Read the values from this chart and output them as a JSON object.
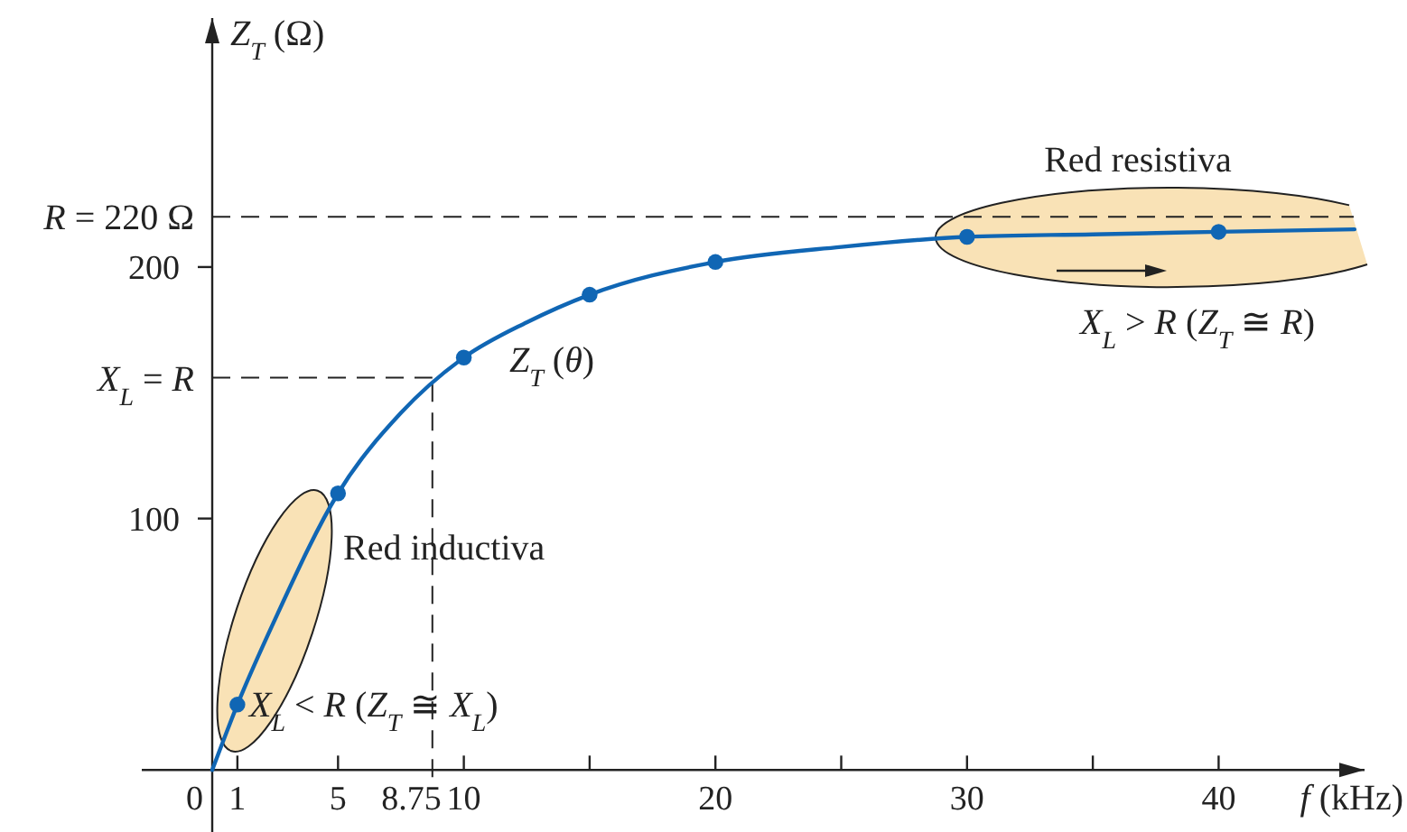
{
  "chart_data": {
    "type": "line",
    "xlabel": "f (kHz)",
    "ylabel": "Z$_{T}$ (Ω)",
    "xlim": [
      -2.8,
      45.8
    ],
    "ylim": [
      -25,
      299
    ],
    "xticks": [
      0,
      1,
      5,
      10,
      {
        "value": 15,
        "label": null
      },
      20,
      {
        "value": 25,
        "label": null
      },
      30,
      {
        "value": 35,
        "label": null
      },
      40
    ],
    "yticks": [
      100,
      200
    ],
    "series": [
      {
        "color": "#1066b4",
        "marker": "none",
        "x": [
          0,
          1,
          2.5,
          5,
          7.5,
          10,
          12.5,
          15,
          20,
          25,
          30,
          35,
          40,
          45.4
        ],
        "values": [
          0,
          26,
          60,
          110,
          142,
          164,
          178,
          189,
          202,
          208,
          212,
          213,
          214,
          215
        ]
      },
      {
        "type": "scatter",
        "color": "#1066b4",
        "marker": "circle",
        "x": [
          1,
          5,
          10,
          15,
          20,
          30,
          40
        ],
        "values": [
          26,
          110,
          164,
          189,
          202,
          212,
          214
        ]
      }
    ],
    "ref_lines": [
      {
        "axis": "y",
        "value": 220,
        "label": "R = 220 Ω",
        "line_style": "dashed"
      },
      {
        "axis": "y",
        "value": 156,
        "label": "X$_{L}$ = R",
        "line_style": "dashed"
      },
      {
        "axis": "x",
        "value": 8.75,
        "label": "8.75",
        "line_style": "dashed"
      }
    ],
    "annotations": [
      "Red inductiva",
      "X$_{L}$ < R (Z$_{T}$ ≅ X$_{L}$)",
      "Red resistiva",
      "X$_{L}$ > R (Z$_{T}$ ≅ R)",
      "Z$_{T}$ (θ)"
    ]
  }
}
